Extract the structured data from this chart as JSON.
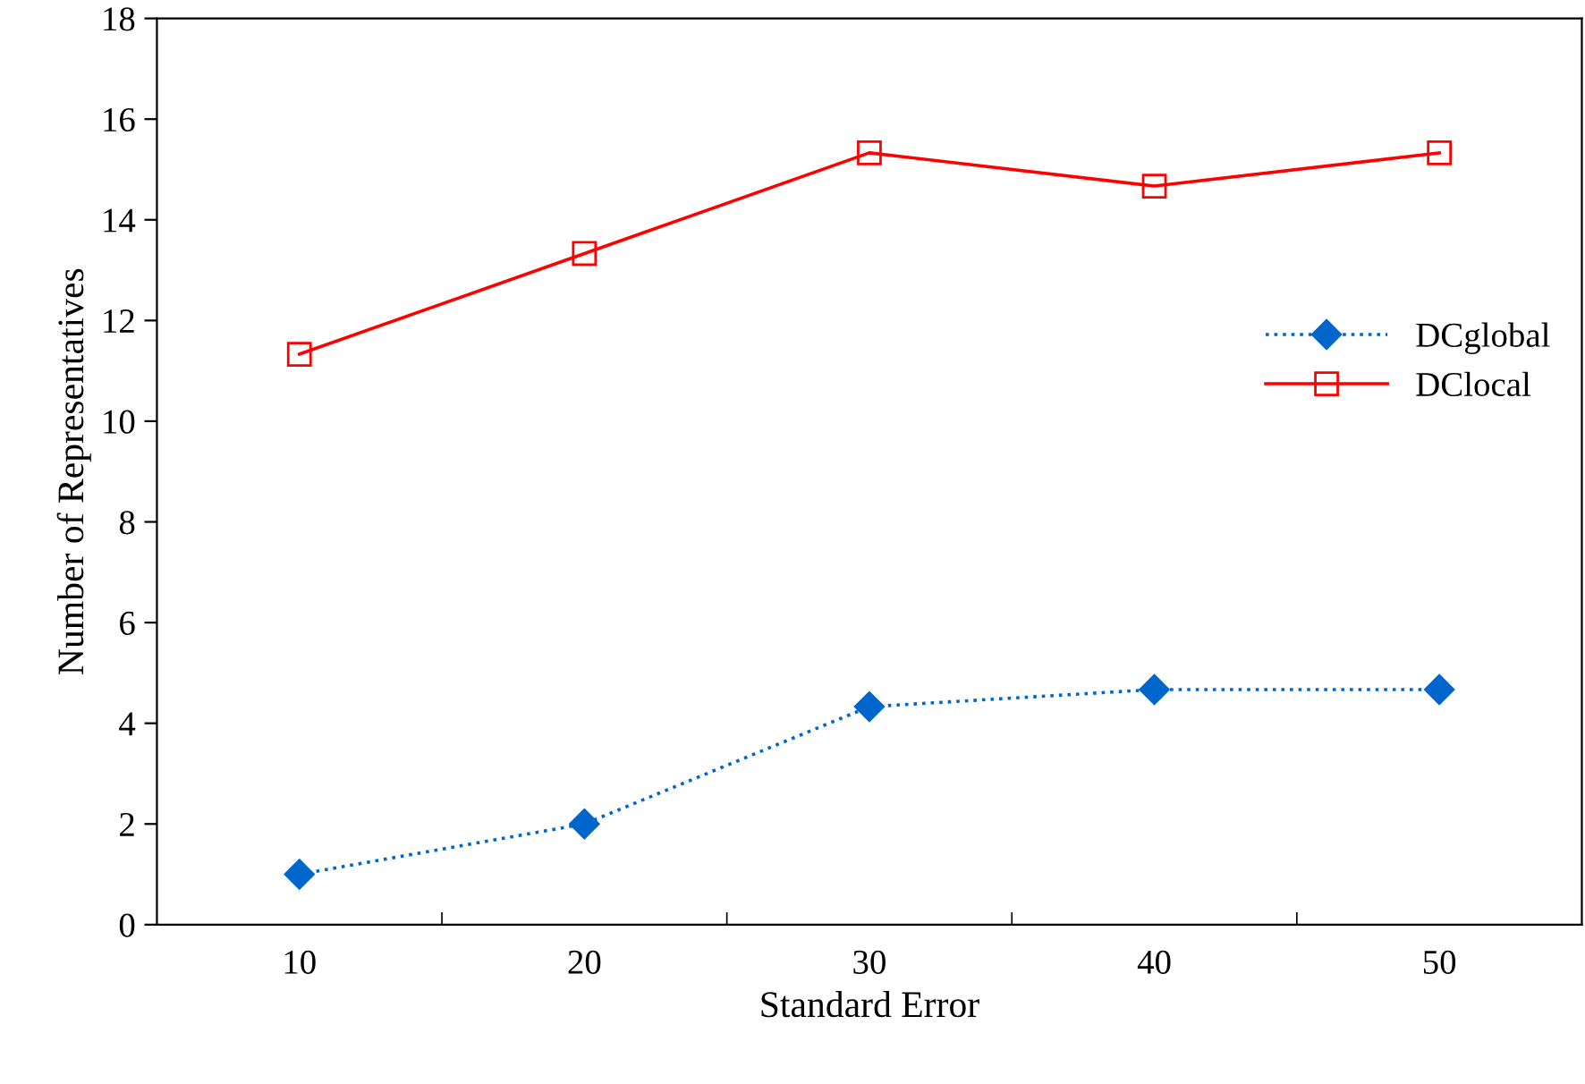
{
  "chart_data": {
    "type": "line",
    "xlabel": "Standard Error",
    "ylabel": "Number of Representatives",
    "categories": [
      "10",
      "20",
      "30",
      "40",
      "50"
    ],
    "series": [
      {
        "name": "DCglobal",
        "color": "#0066cc",
        "marker": "diamond",
        "line_style": "dotted",
        "values": [
          1,
          2,
          4.33,
          4.67,
          4.67
        ]
      },
      {
        "name": "DClocal",
        "color": "#ff0000",
        "marker": "square",
        "line_style": "solid",
        "values": [
          11.33,
          13.33,
          15.33,
          14.67,
          15.33
        ]
      }
    ],
    "ylim": [
      0,
      18
    ],
    "yticks": [
      0,
      2,
      4,
      6,
      8,
      10,
      12,
      14,
      16,
      18
    ],
    "grid": false,
    "legend": "right"
  }
}
